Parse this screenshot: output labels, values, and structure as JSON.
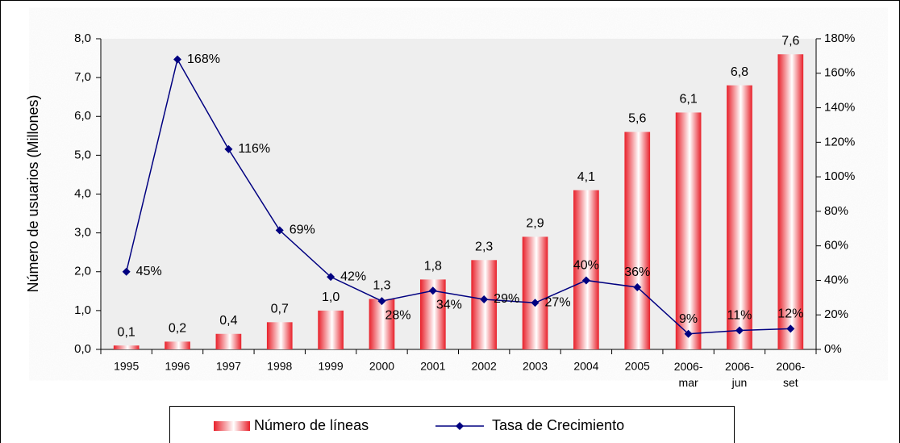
{
  "chart_data": {
    "type": "bar+line",
    "y_label": "Número de usuarios (Millones)",
    "categories": [
      "1995",
      "1996",
      "1997",
      "1998",
      "1999",
      "2000",
      "2001",
      "2002",
      "2003",
      "2004",
      "2005",
      "2006-\nmar",
      "2006-\njun",
      "2006-\nset"
    ],
    "series": [
      {
        "name": "Número de líneas",
        "type": "bar",
        "color": "#e8202a",
        "values": [
          0.1,
          0.2,
          0.4,
          0.7,
          1.0,
          1.3,
          1.8,
          2.3,
          2.9,
          4.1,
          5.6,
          6.1,
          6.8,
          7.6
        ],
        "value_labels": [
          "0,1",
          "0,2",
          "0,4",
          "0,7",
          "1,0",
          "1,3",
          "1,8",
          "2,3",
          "2,9",
          "4,1",
          "5,6",
          "6,1",
          "6,8",
          "7,6"
        ]
      },
      {
        "name": "Tasa de Crecimiento",
        "type": "line",
        "axis": "y2",
        "color": "#000080",
        "values": [
          45,
          168,
          116,
          69,
          42,
          28,
          34,
          29,
          27,
          40,
          36,
          9,
          11,
          12
        ],
        "value_labels": [
          "45%",
          "168%",
          "116%",
          "69%",
          "42%",
          "28%",
          "34%",
          "29%",
          "27%",
          "40%",
          "36%",
          "9%",
          "11%",
          "12%"
        ]
      }
    ],
    "ylim": [
      0,
      8
    ],
    "yticks": [
      {
        "value": 0,
        "label": "0,0"
      },
      {
        "value": 1,
        "label": "1,0"
      },
      {
        "value": 2,
        "label": "2,0"
      },
      {
        "value": 3,
        "label": "3,0"
      },
      {
        "value": 4,
        "label": "4,0"
      },
      {
        "value": 5,
        "label": "5,0"
      },
      {
        "value": 6,
        "label": "6,0"
      },
      {
        "value": 7,
        "label": "7,0"
      },
      {
        "value": 8,
        "label": "8,0"
      }
    ],
    "y2lim": [
      0,
      180
    ],
    "y2ticks": [
      {
        "value": 0,
        "label": "0%"
      },
      {
        "value": 20,
        "label": "20%"
      },
      {
        "value": 40,
        "label": "40%"
      },
      {
        "value": 60,
        "label": "60%"
      },
      {
        "value": 80,
        "label": "80%"
      },
      {
        "value": 100,
        "label": "100%"
      },
      {
        "value": 120,
        "label": "120%"
      },
      {
        "value": 140,
        "label": "140%"
      },
      {
        "value": 160,
        "label": "160%"
      },
      {
        "value": 180,
        "label": "180%"
      }
    ],
    "legend": "bottom"
  }
}
